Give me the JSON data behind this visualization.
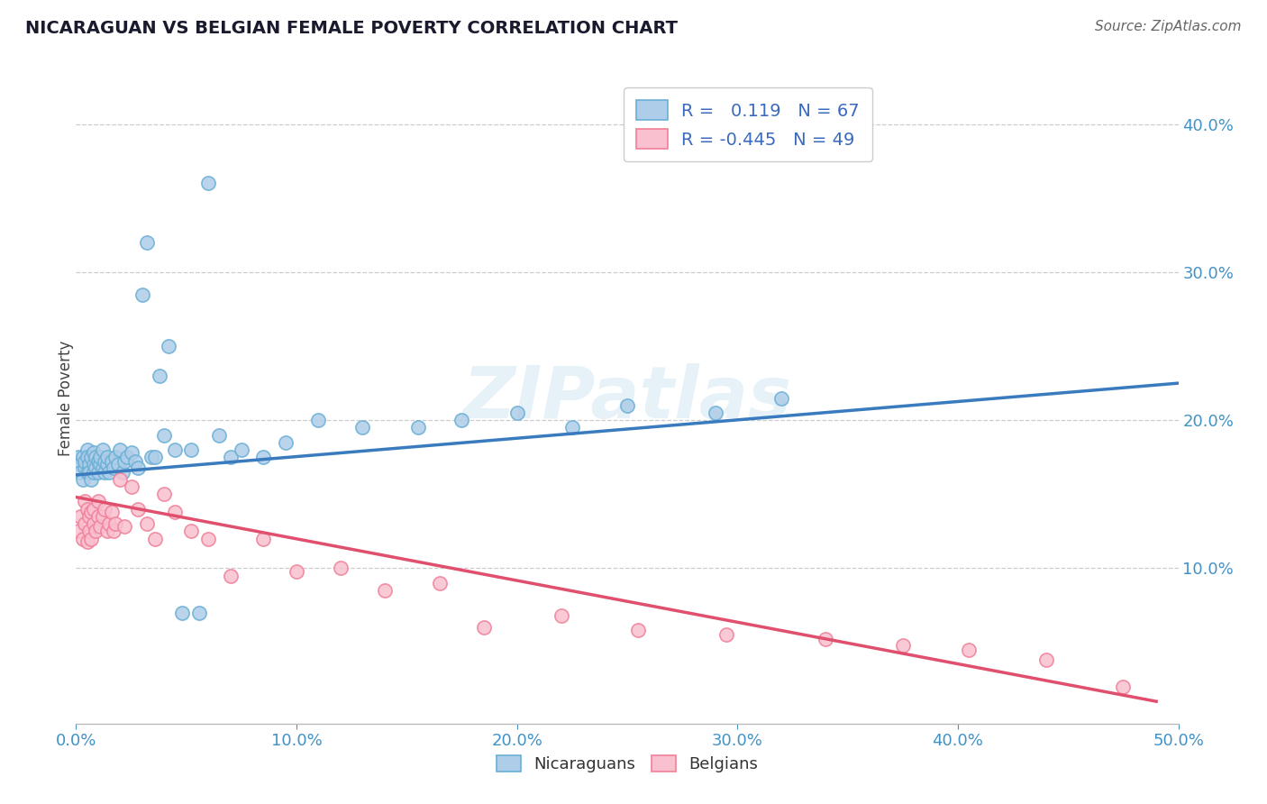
{
  "title": "NICARAGUAN VS BELGIAN FEMALE POVERTY CORRELATION CHART",
  "source": "Source: ZipAtlas.com",
  "ylabel": "Female Poverty",
  "xlim": [
    0.0,
    0.5
  ],
  "ylim": [
    -0.005,
    0.435
  ],
  "yticks": [
    0.1,
    0.2,
    0.3,
    0.4
  ],
  "xticks": [
    0.0,
    0.1,
    0.2,
    0.3,
    0.4,
    0.5
  ],
  "blue_face_color": "#aecde8",
  "blue_edge_color": "#6aafd6",
  "pink_face_color": "#f9c0cf",
  "pink_edge_color": "#f08098",
  "blue_line_color": "#3a7bbf",
  "pink_line_color": "#e0506e",
  "legend_blue_r": "R =  0.119",
  "legend_blue_n": "N = 67",
  "legend_pink_r": "R = -0.445",
  "legend_pink_n": "N = 49",
  "watermark": "ZIPatlas",
  "blue_scatter_x": [
    0.001,
    0.002,
    0.002,
    0.003,
    0.003,
    0.004,
    0.004,
    0.005,
    0.005,
    0.005,
    0.006,
    0.006,
    0.007,
    0.007,
    0.008,
    0.008,
    0.008,
    0.009,
    0.009,
    0.01,
    0.01,
    0.011,
    0.011,
    0.012,
    0.012,
    0.013,
    0.013,
    0.014,
    0.014,
    0.015,
    0.016,
    0.017,
    0.018,
    0.019,
    0.02,
    0.021,
    0.022,
    0.023,
    0.025,
    0.027,
    0.028,
    0.03,
    0.032,
    0.034,
    0.036,
    0.038,
    0.04,
    0.042,
    0.045,
    0.048,
    0.052,
    0.056,
    0.06,
    0.065,
    0.07,
    0.075,
    0.085,
    0.095,
    0.11,
    0.13,
    0.155,
    0.175,
    0.2,
    0.225,
    0.25,
    0.29,
    0.32
  ],
  "blue_scatter_y": [
    0.175,
    0.17,
    0.165,
    0.16,
    0.175,
    0.168,
    0.172,
    0.165,
    0.18,
    0.175,
    0.17,
    0.165,
    0.175,
    0.16,
    0.178,
    0.165,
    0.17,
    0.175,
    0.168,
    0.172,
    0.165,
    0.17,
    0.175,
    0.168,
    0.18,
    0.165,
    0.172,
    0.17,
    0.175,
    0.165,
    0.172,
    0.168,
    0.175,
    0.17,
    0.18,
    0.165,
    0.172,
    0.175,
    0.178,
    0.172,
    0.168,
    0.285,
    0.32,
    0.175,
    0.175,
    0.23,
    0.19,
    0.25,
    0.18,
    0.07,
    0.18,
    0.07,
    0.36,
    0.19,
    0.175,
    0.18,
    0.175,
    0.185,
    0.2,
    0.195,
    0.195,
    0.2,
    0.205,
    0.195,
    0.21,
    0.205,
    0.215
  ],
  "pink_scatter_x": [
    0.001,
    0.002,
    0.003,
    0.004,
    0.004,
    0.005,
    0.005,
    0.006,
    0.006,
    0.007,
    0.007,
    0.008,
    0.008,
    0.009,
    0.01,
    0.01,
    0.011,
    0.012,
    0.013,
    0.014,
    0.015,
    0.016,
    0.017,
    0.018,
    0.02,
    0.022,
    0.025,
    0.028,
    0.032,
    0.036,
    0.04,
    0.045,
    0.052,
    0.06,
    0.07,
    0.085,
    0.1,
    0.12,
    0.14,
    0.165,
    0.185,
    0.22,
    0.255,
    0.295,
    0.34,
    0.375,
    0.405,
    0.44,
    0.475
  ],
  "pink_scatter_y": [
    0.125,
    0.135,
    0.12,
    0.13,
    0.145,
    0.118,
    0.14,
    0.135,
    0.125,
    0.138,
    0.12,
    0.13,
    0.14,
    0.125,
    0.135,
    0.145,
    0.128,
    0.135,
    0.14,
    0.125,
    0.13,
    0.138,
    0.125,
    0.13,
    0.16,
    0.128,
    0.155,
    0.14,
    0.13,
    0.12,
    0.15,
    0.138,
    0.125,
    0.12,
    0.095,
    0.12,
    0.098,
    0.1,
    0.085,
    0.09,
    0.06,
    0.068,
    0.058,
    0.055,
    0.052,
    0.048,
    0.045,
    0.038,
    0.02
  ],
  "blue_trendline_x": [
    0.0,
    0.5
  ],
  "blue_trendline_y": [
    0.163,
    0.225
  ],
  "pink_trendline_x": [
    0.0,
    0.49
  ],
  "pink_trendline_y": [
    0.148,
    0.01
  ]
}
